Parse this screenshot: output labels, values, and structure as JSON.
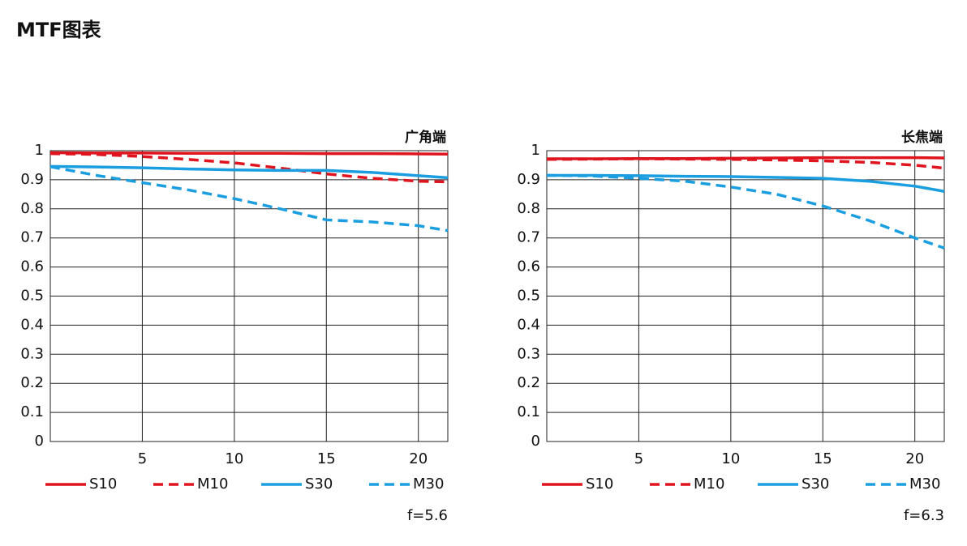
{
  "title": "MTF图表",
  "chart_data": [
    {
      "type": "line",
      "title": "广角端",
      "note": "f=5.6",
      "x": [
        0,
        2.5,
        5,
        7.5,
        10,
        12.5,
        15,
        17.5,
        20,
        21.6
      ],
      "series": [
        {
          "name": "S10",
          "color": "#e0141e",
          "dashed": false,
          "values": [
            0.993,
            0.992,
            0.992,
            0.991,
            0.991,
            0.991,
            0.99,
            0.99,
            0.989,
            0.988
          ]
        },
        {
          "name": "M10",
          "color": "#e0141e",
          "dashed": true,
          "values": [
            0.99,
            0.987,
            0.98,
            0.97,
            0.958,
            0.94,
            0.92,
            0.905,
            0.895,
            0.893
          ]
        },
        {
          "name": "S30",
          "color": "#1a9ee0",
          "dashed": false,
          "values": [
            0.946,
            0.944,
            0.941,
            0.937,
            0.934,
            0.932,
            0.932,
            0.925,
            0.914,
            0.907
          ]
        },
        {
          "name": "M30",
          "color": "#1a9ee0",
          "dashed": true,
          "values": [
            0.945,
            0.915,
            0.89,
            0.865,
            0.835,
            0.8,
            0.762,
            0.755,
            0.742,
            0.725
          ]
        }
      ],
      "xlim": [
        0,
        21.6
      ],
      "ylim": [
        0,
        1
      ],
      "xticks": [
        5,
        10,
        15,
        20
      ],
      "yticks": [
        0,
        0.1,
        0.2,
        0.3,
        0.4,
        0.5,
        0.6,
        0.7,
        0.8,
        0.9,
        1
      ],
      "grid": true
    },
    {
      "type": "line",
      "title": "长焦端",
      "note": "f=6.3",
      "x": [
        0,
        2.5,
        5,
        7.5,
        10,
        12.5,
        15,
        17.5,
        20,
        21.6
      ],
      "series": [
        {
          "name": "S10",
          "color": "#e0141e",
          "dashed": false,
          "values": [
            0.972,
            0.972,
            0.973,
            0.973,
            0.974,
            0.975,
            0.976,
            0.976,
            0.976,
            0.975
          ]
        },
        {
          "name": "M10",
          "color": "#e0141e",
          "dashed": true,
          "values": [
            0.97,
            0.971,
            0.972,
            0.971,
            0.97,
            0.968,
            0.965,
            0.96,
            0.95,
            0.94
          ]
        },
        {
          "name": "S30",
          "color": "#1a9ee0",
          "dashed": false,
          "values": [
            0.915,
            0.915,
            0.914,
            0.912,
            0.911,
            0.908,
            0.905,
            0.895,
            0.878,
            0.86
          ]
        },
        {
          "name": "M30",
          "color": "#1a9ee0",
          "dashed": true,
          "values": [
            0.915,
            0.913,
            0.905,
            0.895,
            0.875,
            0.85,
            0.81,
            0.76,
            0.7,
            0.665
          ]
        }
      ],
      "xlim": [
        0,
        21.6
      ],
      "ylim": [
        0,
        1
      ],
      "xticks": [
        5,
        10,
        15,
        20
      ],
      "yticks": [
        0,
        0.1,
        0.2,
        0.3,
        0.4,
        0.5,
        0.6,
        0.7,
        0.8,
        0.9,
        1
      ],
      "grid": true
    }
  ]
}
